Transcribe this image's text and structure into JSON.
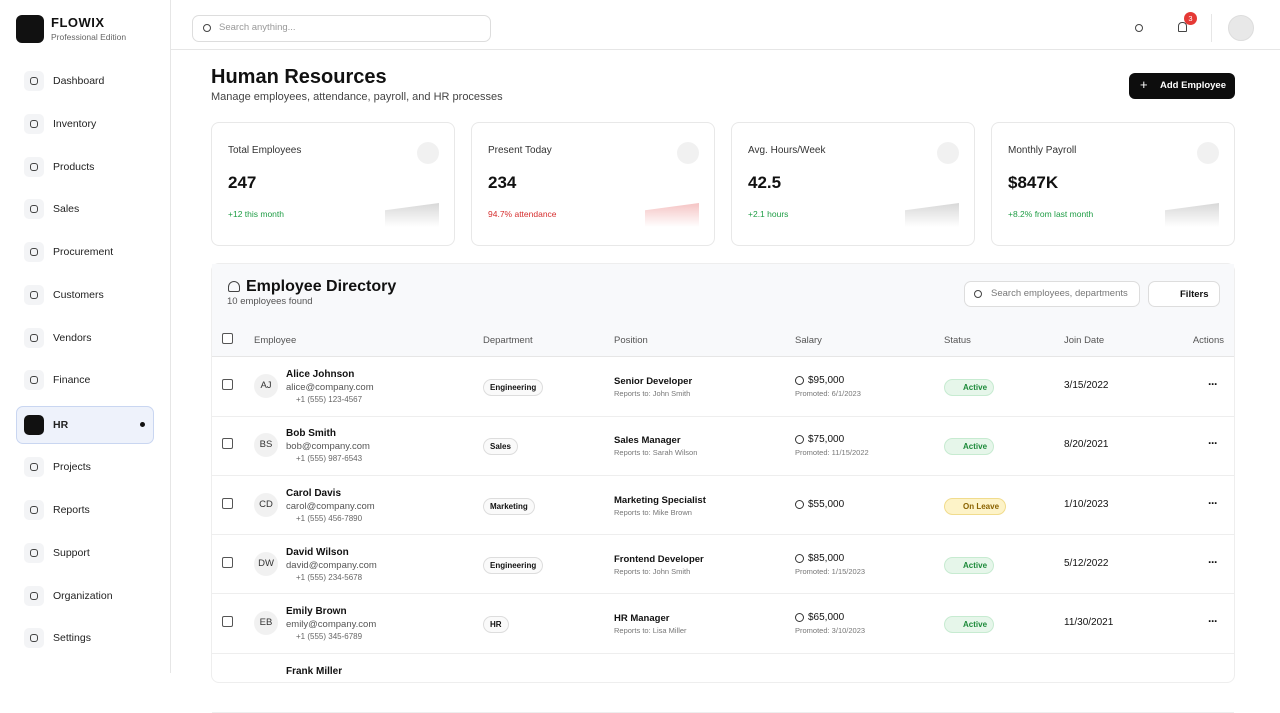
{
  "brand": {
    "name": "FLOWIX",
    "edition": "Professional Edition"
  },
  "topbar": {
    "search_placeholder": "Search anything...",
    "notification_count": 3
  },
  "nav": [
    {
      "label": "Dashboard"
    },
    {
      "label": "Inventory"
    },
    {
      "label": "Products"
    },
    {
      "label": "Sales"
    },
    {
      "label": "Procurement"
    },
    {
      "label": "Customers"
    },
    {
      "label": "Vendors"
    },
    {
      "label": "Finance"
    },
    {
      "label": "HR",
      "active": true
    },
    {
      "label": "Projects"
    },
    {
      "label": "Reports"
    },
    {
      "label": "Support"
    },
    {
      "label": "Organization"
    },
    {
      "label": "Settings"
    }
  ],
  "page": {
    "title": "Human Resources",
    "subtitle": "Manage employees, attendance, payroll, and HR processes",
    "add_button": "Add Employee"
  },
  "stats": [
    {
      "label": "Total Employees",
      "value": 247,
      "change": "+12 this month",
      "trend": "up"
    },
    {
      "label": "Present Today",
      "value": 234,
      "change": "94.7% attendance",
      "trend": "down"
    },
    {
      "label": "Avg. Hours/Week",
      "value": 42.5,
      "change": "+2.1 hours",
      "trend": "up"
    },
    {
      "label": "Monthly Payroll",
      "value": "$847K",
      "change": "+8.2% from last month",
      "trend": "up"
    }
  ],
  "directory": {
    "title": "Employee Directory",
    "count": "10 employees found",
    "search_placeholder": "Search employees, departments",
    "filters": "Filters",
    "columns": [
      "Employee",
      "Department",
      "Position",
      "Salary",
      "Status",
      "Join Date",
      "Actions"
    ],
    "rows": [
      {
        "initials": "AJ",
        "name": "Alice Johnson",
        "email": "alice@company.com",
        "phone": "+1 (555) 123-4567",
        "department": "Engineering",
        "position": "Senior Developer",
        "reports_to": "Reports to: John Smith",
        "salary": "$95,000",
        "promoted": "Promoted: 6/1/2023",
        "status": "Active",
        "status_tone": "success",
        "join_date": "3/15/2022"
      },
      {
        "initials": "BS",
        "name": "Bob Smith",
        "email": "bob@company.com",
        "phone": "+1 (555) 987-6543",
        "department": "Sales",
        "position": "Sales Manager",
        "reports_to": "Reports to: Sarah Wilson",
        "salary": "$75,000",
        "promoted": "Promoted: 11/15/2022",
        "status": "Active",
        "status_tone": "success",
        "join_date": "8/20/2021"
      },
      {
        "initials": "CD",
        "name": "Carol Davis",
        "email": "carol@company.com",
        "phone": "+1 (555) 456-7890",
        "department": "Marketing",
        "position": "Marketing Specialist",
        "reports_to": "Reports to: Mike Brown",
        "salary": "$55,000",
        "status": "On Leave",
        "status_tone": "warning",
        "join_date": "1/10/2023"
      },
      {
        "initials": "DW",
        "name": "David Wilson",
        "email": "david@company.com",
        "phone": "+1 (555) 234-5678",
        "department": "Engineering",
        "position": "Frontend Developer",
        "reports_to": "Reports to: John Smith",
        "salary": "$85,000",
        "promoted": "Promoted: 1/15/2023",
        "status": "Active",
        "status_tone": "success",
        "join_date": "5/12/2022"
      },
      {
        "initials": "EB",
        "name": "Emily Brown",
        "email": "emily@company.com",
        "phone": "+1 (555) 345-6789",
        "department": "HR",
        "position": "HR Manager",
        "reports_to": "Reports to: Lisa Miller",
        "salary": "$65,000",
        "promoted": "Promoted: 3/10/2023",
        "status": "Active",
        "status_tone": "success",
        "join_date": "11/30/2021"
      },
      {
        "name": "Frank Miller"
      }
    ]
  }
}
